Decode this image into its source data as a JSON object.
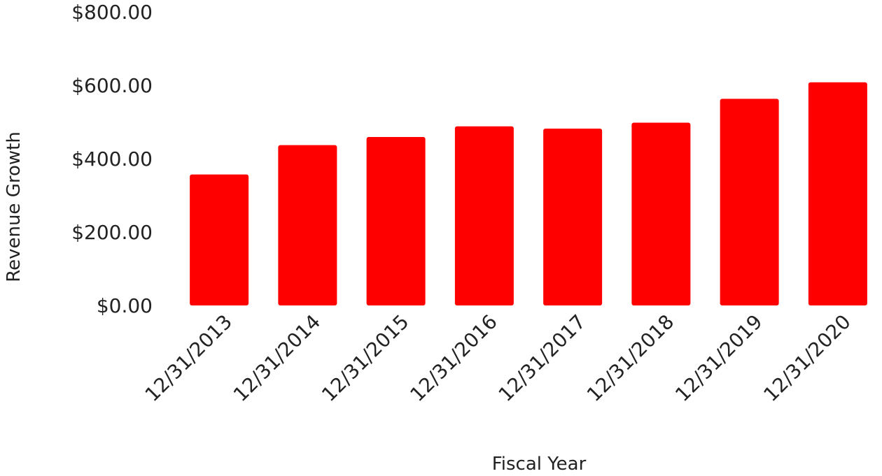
{
  "chart_data": {
    "type": "bar",
    "title": "",
    "xlabel": "Fiscal Year",
    "ylabel": "Revenue Growth",
    "categories": [
      "12/31/2013",
      "12/31/2014",
      "12/31/2015",
      "12/31/2016",
      "12/31/2017",
      "12/31/2018",
      "12/31/2019",
      "12/31/2020"
    ],
    "values": [
      357,
      437,
      459,
      488,
      482,
      498,
      563,
      608
    ],
    "ylim": [
      0,
      800
    ],
    "y_ticks": [
      "$0.00",
      "$200.00",
      "$400.00",
      "$600.00",
      "$800.00"
    ],
    "y_tick_values": [
      0,
      200,
      400,
      600,
      800
    ],
    "bar_color": "#ff0000",
    "grid": false,
    "legend": "none"
  }
}
